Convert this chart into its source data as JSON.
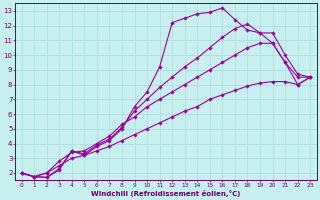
{
  "title": "",
  "xlabel": "Windchill (Refroidissement éolien,°C)",
  "ylabel": "",
  "bg_color": "#c8efef",
  "line_color": "#990099",
  "grid_color": "#b0dede",
  "axis_color": "#660066",
  "xlim": [
    -0.5,
    23.5
  ],
  "ylim": [
    1.5,
    13.5
  ],
  "xticks": [
    0,
    1,
    2,
    3,
    4,
    5,
    6,
    7,
    8,
    9,
    10,
    11,
    12,
    13,
    14,
    15,
    16,
    17,
    18,
    19,
    20,
    21,
    22,
    23
  ],
  "yticks": [
    2,
    3,
    4,
    5,
    6,
    7,
    8,
    9,
    10,
    11,
    12,
    13
  ],
  "series": [
    {
      "x": [
        0,
        1,
        2,
        3,
        4,
        5,
        6,
        7,
        8,
        9,
        10,
        11,
        12,
        13,
        14,
        15,
        16,
        17,
        18,
        19,
        20,
        21,
        22,
        23
      ],
      "y": [
        2.0,
        1.75,
        1.7,
        2.2,
        3.5,
        3.2,
        3.8,
        4.2,
        5.0,
        6.5,
        7.5,
        9.2,
        12.2,
        12.5,
        12.8,
        12.9,
        13.2,
        12.4,
        11.7,
        11.5,
        10.8,
        9.5,
        8.5,
        8.5
      ]
    },
    {
      "x": [
        0,
        1,
        2,
        3,
        4,
        5,
        6,
        7,
        8,
        9,
        10,
        11,
        12,
        13,
        14,
        15,
        16,
        17,
        18,
        19,
        20,
        21,
        22,
        23
      ],
      "y": [
        2.0,
        1.75,
        1.7,
        2.3,
        3.5,
        3.3,
        3.9,
        4.3,
        5.1,
        6.2,
        7.0,
        7.8,
        8.5,
        9.2,
        9.8,
        10.5,
        11.2,
        11.8,
        12.1,
        11.5,
        11.5,
        10.0,
        8.7,
        8.5
      ]
    },
    {
      "x": [
        0,
        1,
        2,
        3,
        4,
        5,
        6,
        7,
        8,
        9,
        10,
        11,
        12,
        13,
        14,
        15,
        16,
        17,
        18,
        19,
        20,
        21,
        22,
        23
      ],
      "y": [
        2.0,
        1.75,
        2.0,
        2.8,
        3.4,
        3.5,
        4.0,
        4.5,
        5.3,
        5.8,
        6.5,
        7.0,
        7.5,
        8.0,
        8.5,
        9.0,
        9.5,
        10.0,
        10.5,
        10.8,
        10.8,
        9.5,
        8.0,
        8.5
      ]
    },
    {
      "x": [
        0,
        1,
        2,
        3,
        4,
        5,
        6,
        7,
        8,
        9,
        10,
        11,
        12,
        13,
        14,
        15,
        16,
        17,
        18,
        19,
        20,
        21,
        22,
        23
      ],
      "y": [
        2.0,
        1.75,
        2.0,
        2.5,
        3.0,
        3.2,
        3.5,
        3.8,
        4.2,
        4.6,
        5.0,
        5.4,
        5.8,
        6.2,
        6.5,
        7.0,
        7.3,
        7.6,
        7.9,
        8.1,
        8.2,
        8.2,
        8.0,
        8.5
      ]
    }
  ]
}
